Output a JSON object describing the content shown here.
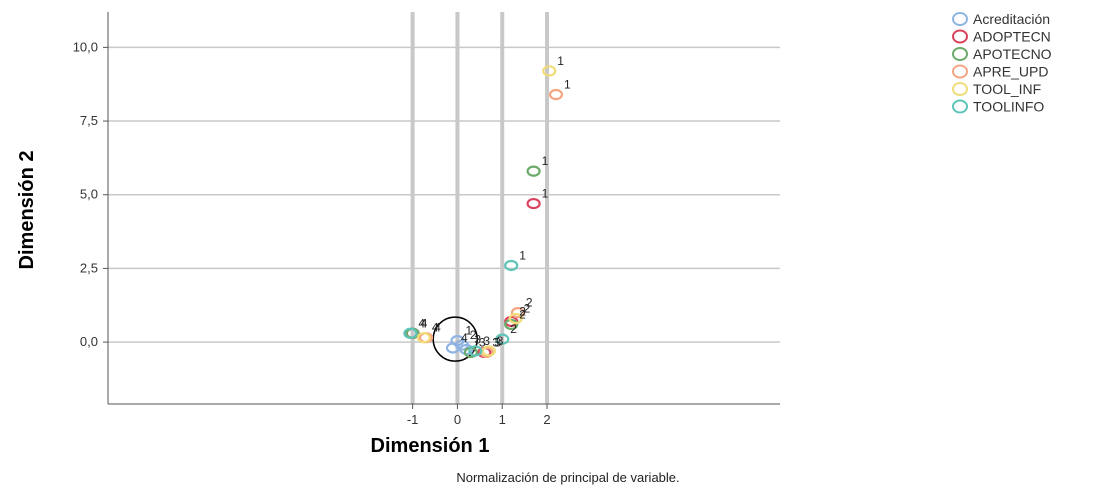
{
  "chart_data": {
    "type": "scatter",
    "xlabel": "Dimensión 1",
    "ylabel": "Dimensión 2",
    "footnote": "Normalización de principal de variable.",
    "xlim": [
      -7.8,
      7.2
    ],
    "ylim": [
      -2.1,
      11.2
    ],
    "xticks": [
      {
        "v": -1,
        "label": "-1"
      },
      {
        "v": 0,
        "label": "0"
      },
      {
        "v": 1,
        "label": "1"
      },
      {
        "v": 2,
        "label": "2"
      }
    ],
    "yticks": [
      {
        "v": 0,
        "label": "0,0"
      },
      {
        "v": 2.5,
        "label": "2,5"
      },
      {
        "v": 5,
        "label": "5,0"
      },
      {
        "v": 7.5,
        "label": "7,5"
      },
      {
        "v": 10,
        "label": "10,0"
      }
    ],
    "grid": true,
    "legend_position": "top-right",
    "series": [
      {
        "name": "Acreditación",
        "color": "#8fb4e3",
        "points": [
          {
            "x": 0.0,
            "y": 0.05,
            "label": "1"
          },
          {
            "x": 0.1,
            "y": -0.1,
            "label": "2"
          },
          {
            "x": 0.2,
            "y": -0.25,
            "label": "3"
          },
          {
            "x": -0.1,
            "y": -0.2,
            "label": "4"
          }
        ]
      },
      {
        "name": "ADOPTECN",
        "color": "#d9435e",
        "points": [
          {
            "x": 1.7,
            "y": 4.7,
            "label": "1"
          },
          {
            "x": 1.2,
            "y": 0.7,
            "label": "2"
          },
          {
            "x": 0.6,
            "y": -0.35,
            "label": "3"
          },
          {
            "x": -1.0,
            "y": 0.3,
            "label": "4"
          }
        ]
      },
      {
        "name": "APOTECNO",
        "color": "#6aaa6a",
        "points": [
          {
            "x": 1.7,
            "y": 5.8,
            "label": "1"
          },
          {
            "x": 1.2,
            "y": 0.6,
            "label": "2"
          },
          {
            "x": 0.3,
            "y": -0.35,
            "label": "3"
          },
          {
            "x": -1.0,
            "y": 0.3,
            "label": "4"
          }
        ]
      },
      {
        "name": "APRE_UPD",
        "color": "#f4a582",
        "points": [
          {
            "x": 2.2,
            "y": 8.4,
            "label": "1"
          },
          {
            "x": 1.35,
            "y": 1.0,
            "label": "2"
          },
          {
            "x": 0.65,
            "y": -0.35,
            "label": "3"
          },
          {
            "x": -0.7,
            "y": 0.15,
            "label": "4"
          }
        ]
      },
      {
        "name": "TOOL_INF",
        "color": "#f2dc78",
        "points": [
          {
            "x": 2.05,
            "y": 9.2,
            "label": "1"
          },
          {
            "x": 1.3,
            "y": 0.8,
            "label": "2"
          },
          {
            "x": 0.7,
            "y": -0.3,
            "label": "3"
          },
          {
            "x": -0.75,
            "y": 0.15,
            "label": "4"
          }
        ]
      },
      {
        "name": "TOOLINFO",
        "color": "#5ec4b8",
        "points": [
          {
            "x": 1.2,
            "y": 2.6,
            "label": "1"
          },
          {
            "x": 1.0,
            "y": 0.1,
            "label": "2"
          },
          {
            "x": 0.4,
            "y": -0.3,
            "label": "3"
          },
          {
            "x": -1.05,
            "y": 0.3,
            "label": "4"
          }
        ]
      }
    ],
    "annotations": {
      "centroid_circle": {
        "x": -0.05,
        "y": 0.1
      }
    }
  }
}
